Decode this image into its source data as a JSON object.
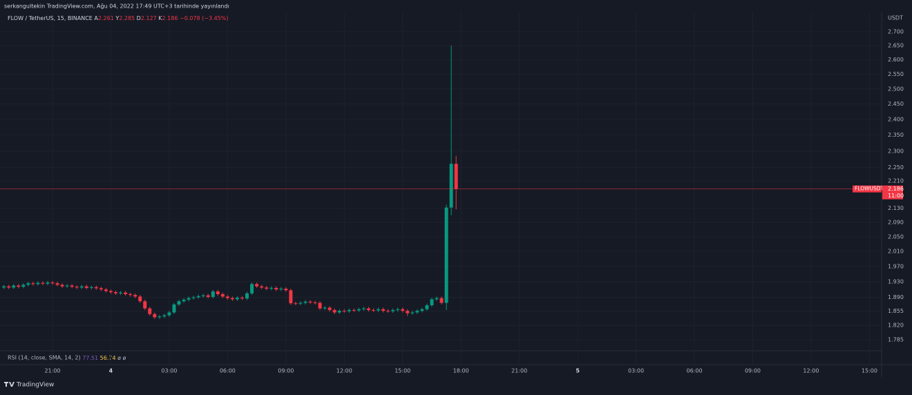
{
  "chart_data": {
    "type": "candlestick",
    "published": "serkangultekin TradingView.com, Ağu 04, 2022 17:49 UTC+3 tarihinde yayınlandı",
    "symbol": "FLOW / TetherUS, 15, BINANCE",
    "ohlc_letters": [
      "A",
      "Y",
      "D",
      "K"
    ],
    "change_label": "−0.078 (−3.45%)",
    "currency": "USDT",
    "price_tag": "FLOWUSDT",
    "countdown": "11:00",
    "indicator": {
      "label": "RSI (14, close, SMA, 14, 2)",
      "values": [
        77.51,
        56.74
      ],
      "extras": [
        "ø",
        "ø"
      ],
      "colors": [
        "#7e57c2",
        "#f7c548"
      ]
    },
    "brand": "TradingView",
    "up_color": "#089981",
    "down_color": "#f23645",
    "log_scale": true,
    "grid": true,
    "xlim": [
      -0.8,
      180.5
    ],
    "xticks": [
      {
        "value": 10,
        "label": "21:00"
      },
      {
        "value": 22,
        "label": "4"
      },
      {
        "value": 34,
        "label": "03:00"
      },
      {
        "value": 46,
        "label": "06:00"
      },
      {
        "value": 58,
        "label": "09:00"
      },
      {
        "value": 70,
        "label": "12:00"
      },
      {
        "value": 82,
        "label": "15:00"
      },
      {
        "value": 94,
        "label": "18:00"
      },
      {
        "value": 106,
        "label": "21:00"
      },
      {
        "value": 118,
        "label": "5"
      },
      {
        "value": 130,
        "label": "03:00"
      },
      {
        "value": 142,
        "label": "06:00"
      },
      {
        "value": 154,
        "label": "09:00"
      },
      {
        "value": 166,
        "label": "12:00"
      },
      {
        "value": 178,
        "label": "15:00"
      }
    ],
    "ylim": [
      1.759,
      2.74
    ],
    "yticks": [
      {
        "value": 1.785,
        "label": "1.785"
      },
      {
        "value": 1.82,
        "label": "1.820"
      },
      {
        "value": 1.855,
        "label": "1.855"
      },
      {
        "value": 1.89,
        "label": "1.890"
      },
      {
        "value": 1.93,
        "label": "1.930"
      },
      {
        "value": 1.97,
        "label": "1.970"
      },
      {
        "value": 2.01,
        "label": "2.010"
      },
      {
        "value": 2.05,
        "label": "2.050"
      },
      {
        "value": 2.09,
        "label": "2.090"
      },
      {
        "value": 2.13,
        "label": "2.130"
      },
      {
        "value": 2.21,
        "label": "2.210"
      },
      {
        "value": 2.25,
        "label": "2.250"
      },
      {
        "value": 2.3,
        "label": "2.300"
      },
      {
        "value": 2.35,
        "label": "2.350"
      },
      {
        "value": 2.4,
        "label": "2.400"
      },
      {
        "value": 2.45,
        "label": "2.450"
      },
      {
        "value": 2.5,
        "label": "2.500"
      },
      {
        "value": 2.55,
        "label": "2.550"
      },
      {
        "value": 2.6,
        "label": "2.600"
      },
      {
        "value": 2.65,
        "label": "2.650"
      },
      {
        "value": 2.7,
        "label": "2.700"
      }
    ],
    "open": [
      1.915,
      1.918,
      1.915,
      1.92,
      1.917,
      1.922,
      1.926,
      1.924,
      1.927,
      1.925,
      1.928,
      1.926,
      1.922,
      1.918,
      1.92,
      1.917,
      1.915,
      1.918,
      1.914,
      1.916,
      1.913,
      1.91,
      1.906,
      1.903,
      1.9,
      1.902,
      1.898,
      1.896,
      1.892,
      1.88,
      1.862,
      1.848,
      1.84,
      1.842,
      1.845,
      1.852,
      1.872,
      1.88,
      1.884,
      1.888,
      1.89,
      1.893,
      1.895,
      1.891,
      1.905,
      1.898,
      1.892,
      1.888,
      1.885,
      1.889,
      1.887,
      1.9,
      1.924,
      1.918,
      1.915,
      1.912,
      1.914,
      1.91,
      1.912,
      1.908,
      1.875,
      1.874,
      1.876,
      1.879,
      1.877,
      1.876,
      1.862,
      1.864,
      1.858,
      1.852,
      1.856,
      1.855,
      1.858,
      1.857,
      1.86,
      1.862,
      1.858,
      1.857,
      1.86,
      1.856,
      1.855,
      1.858,
      1.86,
      1.856,
      1.85,
      1.852,
      1.856,
      1.86,
      1.87,
      1.885,
      1.888,
      1.876,
      2.132,
      2.261
    ],
    "high": [
      1.922,
      1.922,
      1.924,
      1.924,
      1.926,
      1.93,
      1.93,
      1.931,
      1.931,
      1.932,
      1.932,
      1.93,
      1.926,
      1.924,
      1.924,
      1.921,
      1.922,
      1.922,
      1.92,
      1.92,
      1.917,
      1.914,
      1.91,
      1.907,
      1.906,
      1.906,
      1.902,
      1.9,
      1.896,
      1.884,
      1.866,
      1.852,
      1.846,
      1.849,
      1.856,
      1.876,
      1.884,
      1.888,
      1.892,
      1.894,
      1.897,
      1.899,
      1.899,
      1.909,
      1.909,
      1.902,
      1.896,
      1.892,
      1.893,
      1.893,
      1.904,
      1.928,
      1.928,
      1.922,
      1.919,
      1.918,
      1.918,
      1.916,
      1.916,
      1.912,
      1.879,
      1.88,
      1.883,
      1.883,
      1.881,
      1.88,
      1.868,
      1.868,
      1.862,
      1.86,
      1.86,
      1.862,
      1.862,
      1.864,
      1.866,
      1.866,
      1.862,
      1.864,
      1.864,
      1.86,
      1.862,
      1.864,
      1.864,
      1.86,
      1.856,
      1.86,
      1.864,
      1.874,
      1.889,
      1.892,
      1.892,
      2.14,
      2.65,
      2.285
    ],
    "low": [
      1.911,
      1.911,
      1.911,
      1.913,
      1.913,
      1.918,
      1.92,
      1.92,
      1.921,
      1.921,
      1.922,
      1.918,
      1.914,
      1.914,
      1.913,
      1.911,
      1.911,
      1.91,
      1.91,
      1.909,
      1.906,
      1.902,
      1.899,
      1.896,
      1.896,
      1.894,
      1.892,
      1.888,
      1.876,
      1.858,
      1.844,
      1.836,
      1.836,
      1.838,
      1.841,
      1.848,
      1.868,
      1.876,
      1.88,
      1.884,
      1.886,
      1.889,
      1.887,
      1.887,
      1.894,
      1.888,
      1.884,
      1.881,
      1.881,
      1.883,
      1.883,
      1.896,
      1.914,
      1.911,
      1.908,
      1.908,
      1.906,
      1.906,
      1.904,
      1.871,
      1.87,
      1.87,
      1.872,
      1.873,
      1.872,
      1.858,
      1.858,
      1.854,
      1.848,
      1.848,
      1.851,
      1.851,
      1.853,
      1.853,
      1.856,
      1.854,
      1.853,
      1.853,
      1.852,
      1.851,
      1.851,
      1.854,
      1.852,
      1.843,
      1.846,
      1.848,
      1.852,
      1.856,
      1.866,
      1.881,
      1.872,
      1.858,
      2.11,
      2.127
    ],
    "close": [
      1.918,
      1.915,
      1.92,
      1.917,
      1.922,
      1.926,
      1.924,
      1.927,
      1.925,
      1.928,
      1.926,
      1.922,
      1.918,
      1.92,
      1.917,
      1.915,
      1.918,
      1.914,
      1.916,
      1.913,
      1.91,
      1.906,
      1.903,
      1.9,
      1.902,
      1.898,
      1.896,
      1.892,
      1.88,
      1.862,
      1.848,
      1.84,
      1.842,
      1.845,
      1.852,
      1.872,
      1.88,
      1.884,
      1.888,
      1.89,
      1.893,
      1.895,
      1.891,
      1.905,
      1.898,
      1.892,
      1.888,
      1.885,
      1.889,
      1.887,
      1.9,
      1.924,
      1.918,
      1.915,
      1.912,
      1.914,
      1.91,
      1.912,
      1.908,
      1.875,
      1.874,
      1.876,
      1.879,
      1.877,
      1.876,
      1.862,
      1.864,
      1.858,
      1.852,
      1.856,
      1.855,
      1.858,
      1.857,
      1.86,
      1.862,
      1.858,
      1.857,
      1.86,
      1.856,
      1.855,
      1.858,
      1.86,
      1.856,
      1.85,
      1.852,
      1.856,
      1.86,
      1.87,
      1.885,
      1.888,
      1.876,
      2.132,
      2.261,
      2.186
    ]
  }
}
